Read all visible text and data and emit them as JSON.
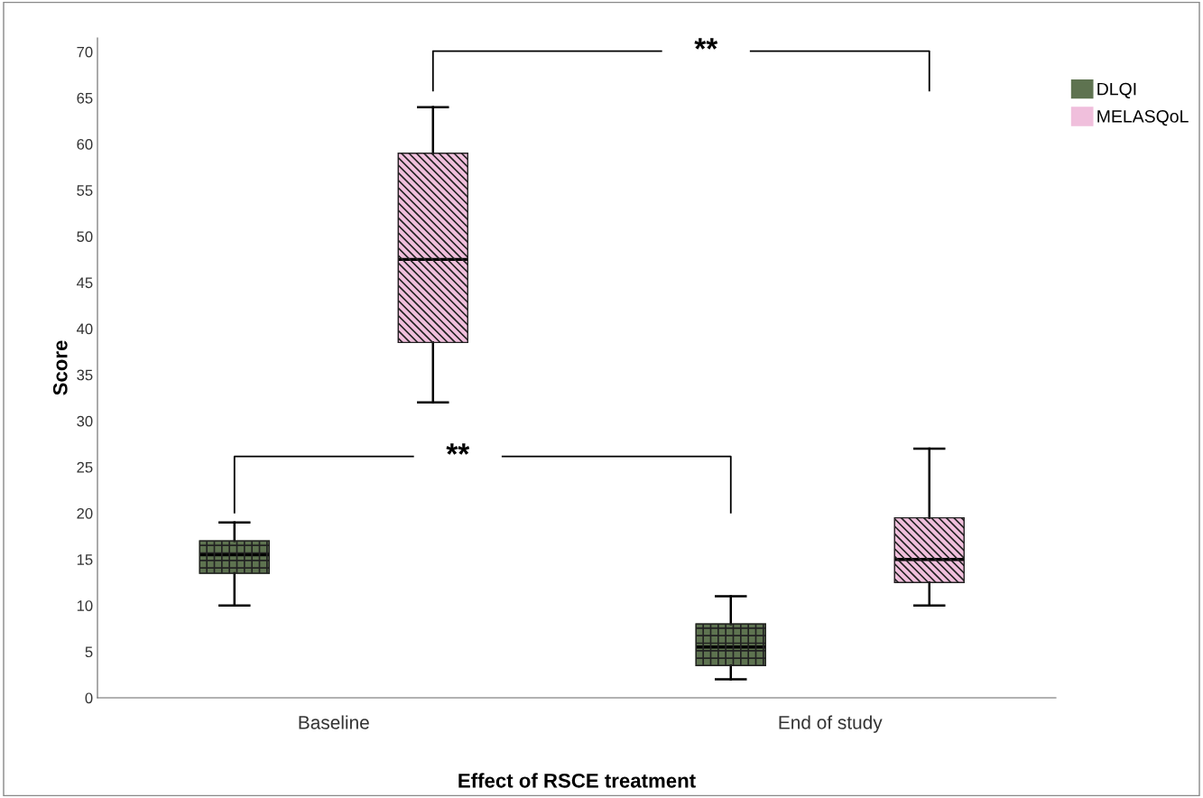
{
  "chart_data": {
    "type": "box",
    "xlabel": "Effect of RSCE treatment",
    "ylabel": "Score",
    "categories": [
      "Baseline",
      "End of study"
    ],
    "series": [
      {
        "name": "DLQI",
        "color": "#5e7350",
        "boxes": [
          {
            "low": 10,
            "q1": 13.5,
            "median": 15.5,
            "q3": 17,
            "high": 19
          },
          {
            "low": 2,
            "q1": 3.5,
            "median": 5.5,
            "q3": 8,
            "high": 11
          }
        ]
      },
      {
        "name": "MELASQoL",
        "color": "#f0bfdc",
        "boxes": [
          {
            "low": 32,
            "q1": 38.5,
            "median": 47.5,
            "q3": 59,
            "high": 64
          },
          {
            "low": 10,
            "q1": 12.5,
            "median": 15,
            "q3": 19.5,
            "high": 27
          }
        ]
      }
    ],
    "ylim": [
      0,
      71.5
    ],
    "yticks": [
      0,
      5,
      10,
      15,
      20,
      25,
      30,
      35,
      40,
      45,
      50,
      55,
      60,
      65,
      70
    ],
    "annotations": [
      "**",
      "**"
    ],
    "grid": false,
    "legend": "top right"
  }
}
